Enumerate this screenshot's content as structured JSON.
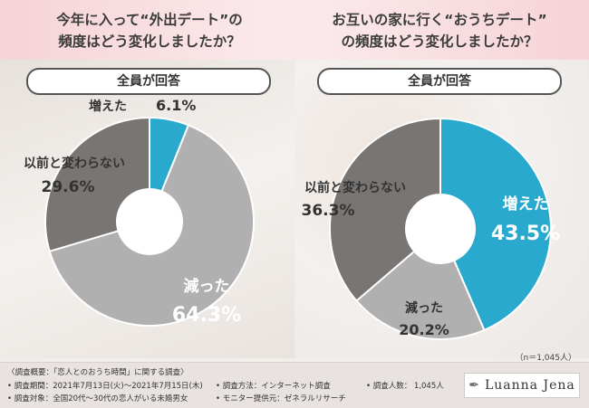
{
  "colors": {
    "increased": "#2aa9cf",
    "decreased": "#b0b0b0",
    "unchanged": "#787573",
    "header_pink": "#f6d3d7"
  },
  "left": {
    "title_line1": "今年に入って“外出デート”の",
    "title_line2": "頻度はどう変化しましたか？",
    "pill": "全員が回答"
  },
  "right": {
    "title_line1": "お互いの家に行く“おうちデート”",
    "title_line2": "の頻度はどう変化しましたか？",
    "pill": "全員が回答"
  },
  "chart_data": [
    {
      "type": "pie",
      "donut": true,
      "title": "今年に入って“外出デート”の頻度はどう変化しましたか？",
      "subtitle": "全員が回答",
      "categories": [
        "増えた",
        "減った",
        "以前と変わらない"
      ],
      "values": [
        6.1,
        64.3,
        29.6
      ],
      "value_labels": [
        "6.1%",
        "64.3%",
        "29.6%"
      ],
      "unit": "%"
    },
    {
      "type": "pie",
      "donut": true,
      "title": "お互いの家に行く“おうちデート”の頻度はどう変化しましたか？",
      "subtitle": "全員が回答",
      "categories": [
        "増えた",
        "減った",
        "以前と変わらない"
      ],
      "values": [
        43.5,
        20.2,
        36.3
      ],
      "value_labels": [
        "43.5%",
        "20.2%",
        "36.3%"
      ],
      "unit": "%"
    }
  ],
  "sample_note": "（n＝1,045人）",
  "footer": {
    "heading": "〈調査概要：「恋人とのおうち時間」に関する調査〉",
    "period": "• 調査期間：2021年7月13日(火)～2021年7月15日(木)",
    "method": "• 調査方法：インターネット調査",
    "count": "• 調査人数：  1,045人",
    "target": "• 調査対象：全国20代～30代の恋人がいる未婚男女",
    "provider": "• モニター提供元：ゼネラルリサーチ",
    "logo": "Luanna Jena"
  }
}
